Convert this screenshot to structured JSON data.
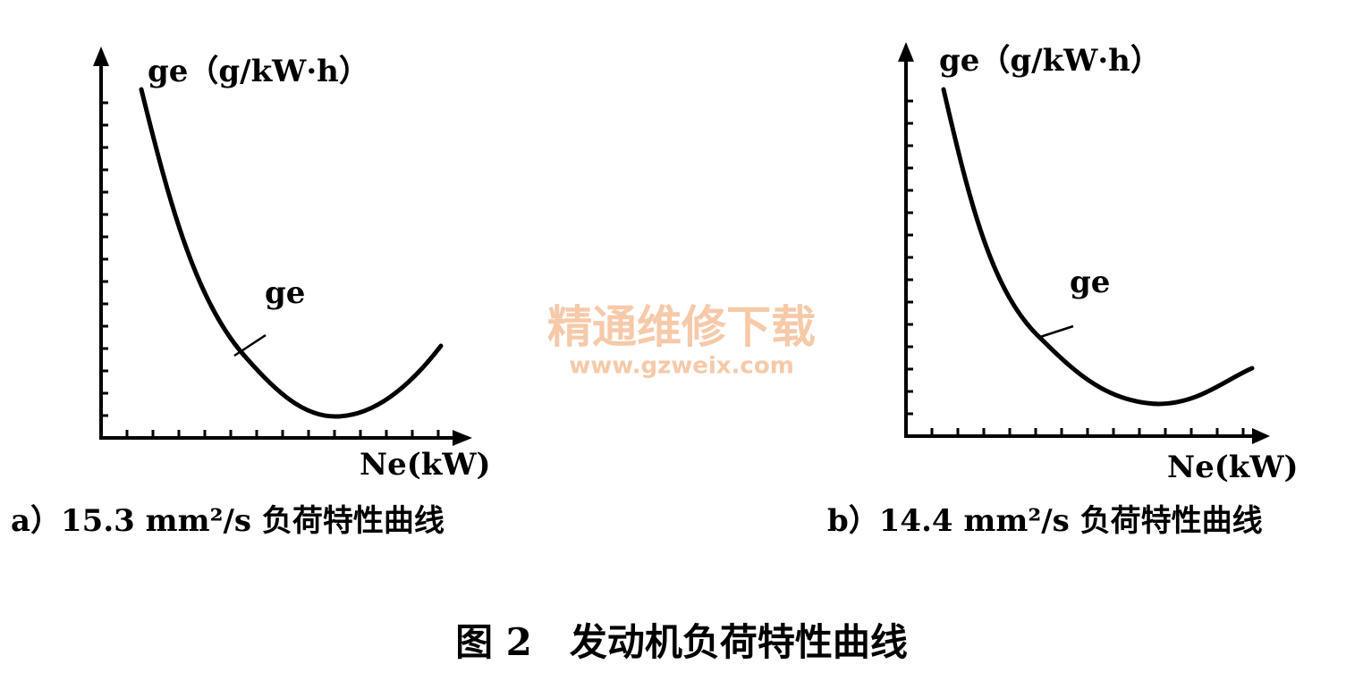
{
  "panels": [
    {
      "y_axis_label": "ge（g/kW·h）",
      "curve_label": "ge",
      "x_axis_label": "Ne(kW)",
      "caption": "a）15.3 mm²/s 负荷特性曲线"
    },
    {
      "y_axis_label": "ge（g/kW·h）",
      "curve_label": "ge",
      "x_axis_label": "Ne(kW)",
      "caption": "b）14.4 mm²/s 负荷特性曲线"
    }
  ],
  "watermark": {
    "title": "精通维修下载",
    "url": "www.gzweix.com"
  },
  "figure_title": "图 2　发动机负荷特性曲线"
}
